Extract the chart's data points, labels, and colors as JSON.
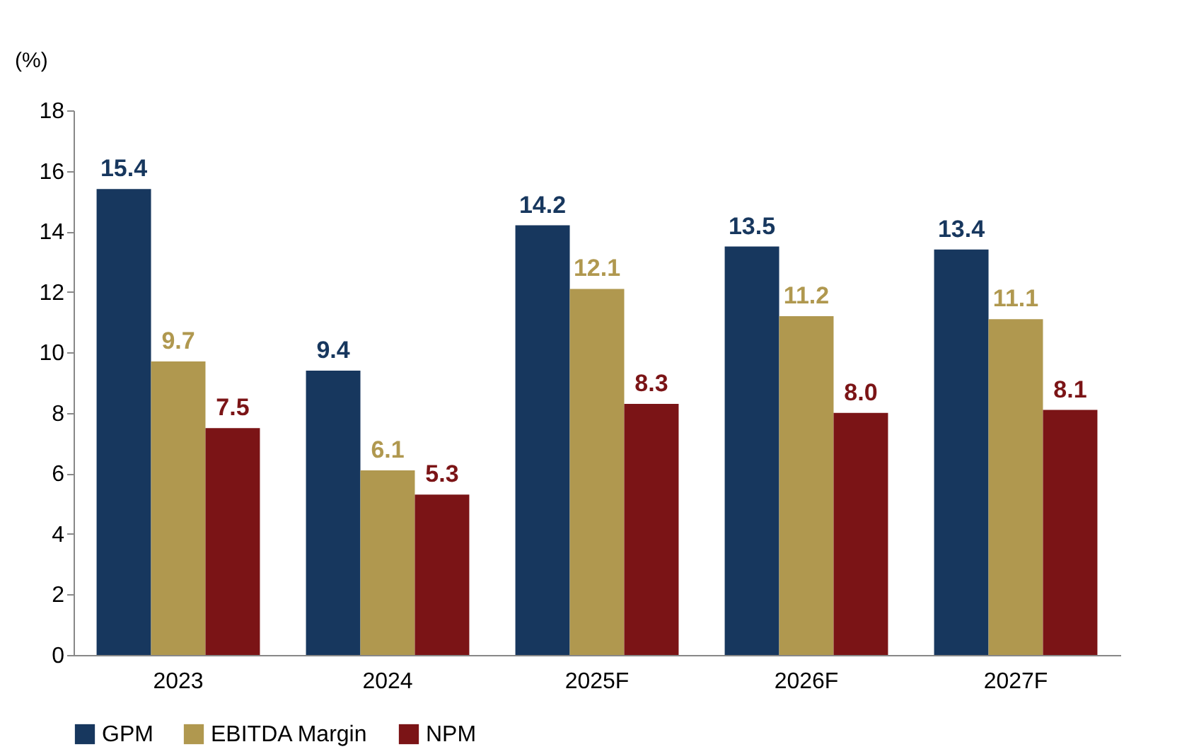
{
  "chart_data": {
    "type": "bar",
    "ylabel": "(%)",
    "categories": [
      "2023",
      "2024",
      "2025F",
      "2026F",
      "2027F"
    ],
    "series": [
      {
        "name": "GPM",
        "color": "#17375e",
        "values": [
          15.4,
          9.4,
          14.2,
          13.5,
          13.4
        ],
        "value_labels": [
          "15.4",
          "9.4",
          "14.2",
          "13.5",
          "13.4"
        ]
      },
      {
        "name": "EBITDA Margin",
        "color": "#b0984f",
        "values": [
          9.7,
          6.1,
          12.1,
          11.2,
          11.1
        ],
        "value_labels": [
          "9.7",
          "6.1",
          "12.1",
          "11.2",
          "11.1"
        ]
      },
      {
        "name": "NPM",
        "color": "#7b1416",
        "values": [
          7.5,
          5.3,
          8.3,
          8.0,
          8.1
        ],
        "value_labels": [
          "7.5",
          "5.3",
          "8.3",
          "8.0",
          "8.1"
        ]
      }
    ],
    "ylim": [
      0,
      18
    ],
    "yticks": [
      0,
      2,
      4,
      6,
      8,
      10,
      12,
      14,
      16,
      18
    ],
    "grid": false,
    "legend": "bottom"
  }
}
